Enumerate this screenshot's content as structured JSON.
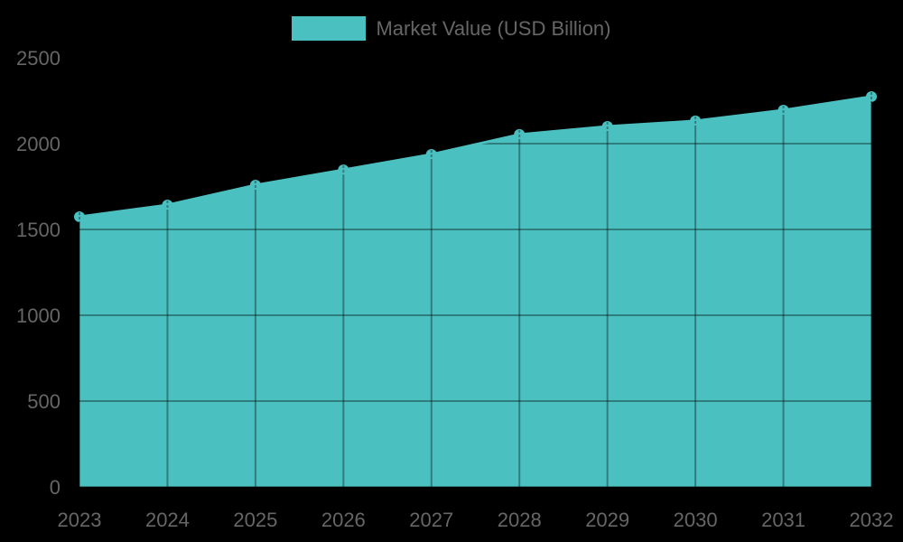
{
  "chart_data": {
    "type": "area",
    "title": "",
    "legend": [
      {
        "label": "Market Value (USD Billion)",
        "color": "#4BC0C0"
      }
    ],
    "legend_position": "top",
    "categories": [
      "2023",
      "2024",
      "2025",
      "2026",
      "2027",
      "2028",
      "2029",
      "2030",
      "2031",
      "2032"
    ],
    "series": [
      {
        "name": "Market Value (USD Billion)",
        "values": [
          1574,
          1642,
          1758,
          1847,
          1937,
          2053,
          2100,
          2132,
          2195,
          2274
        ]
      }
    ],
    "xlabel": "",
    "ylabel": "",
    "ylim": [
      0,
      2500
    ],
    "yticks": [
      0,
      500,
      1000,
      1500,
      2000,
      2500
    ],
    "grid": true,
    "colors": {
      "fill": "#4BC0C0",
      "grid": "rgba(0,0,0,0.35)",
      "text": "#666666"
    }
  }
}
